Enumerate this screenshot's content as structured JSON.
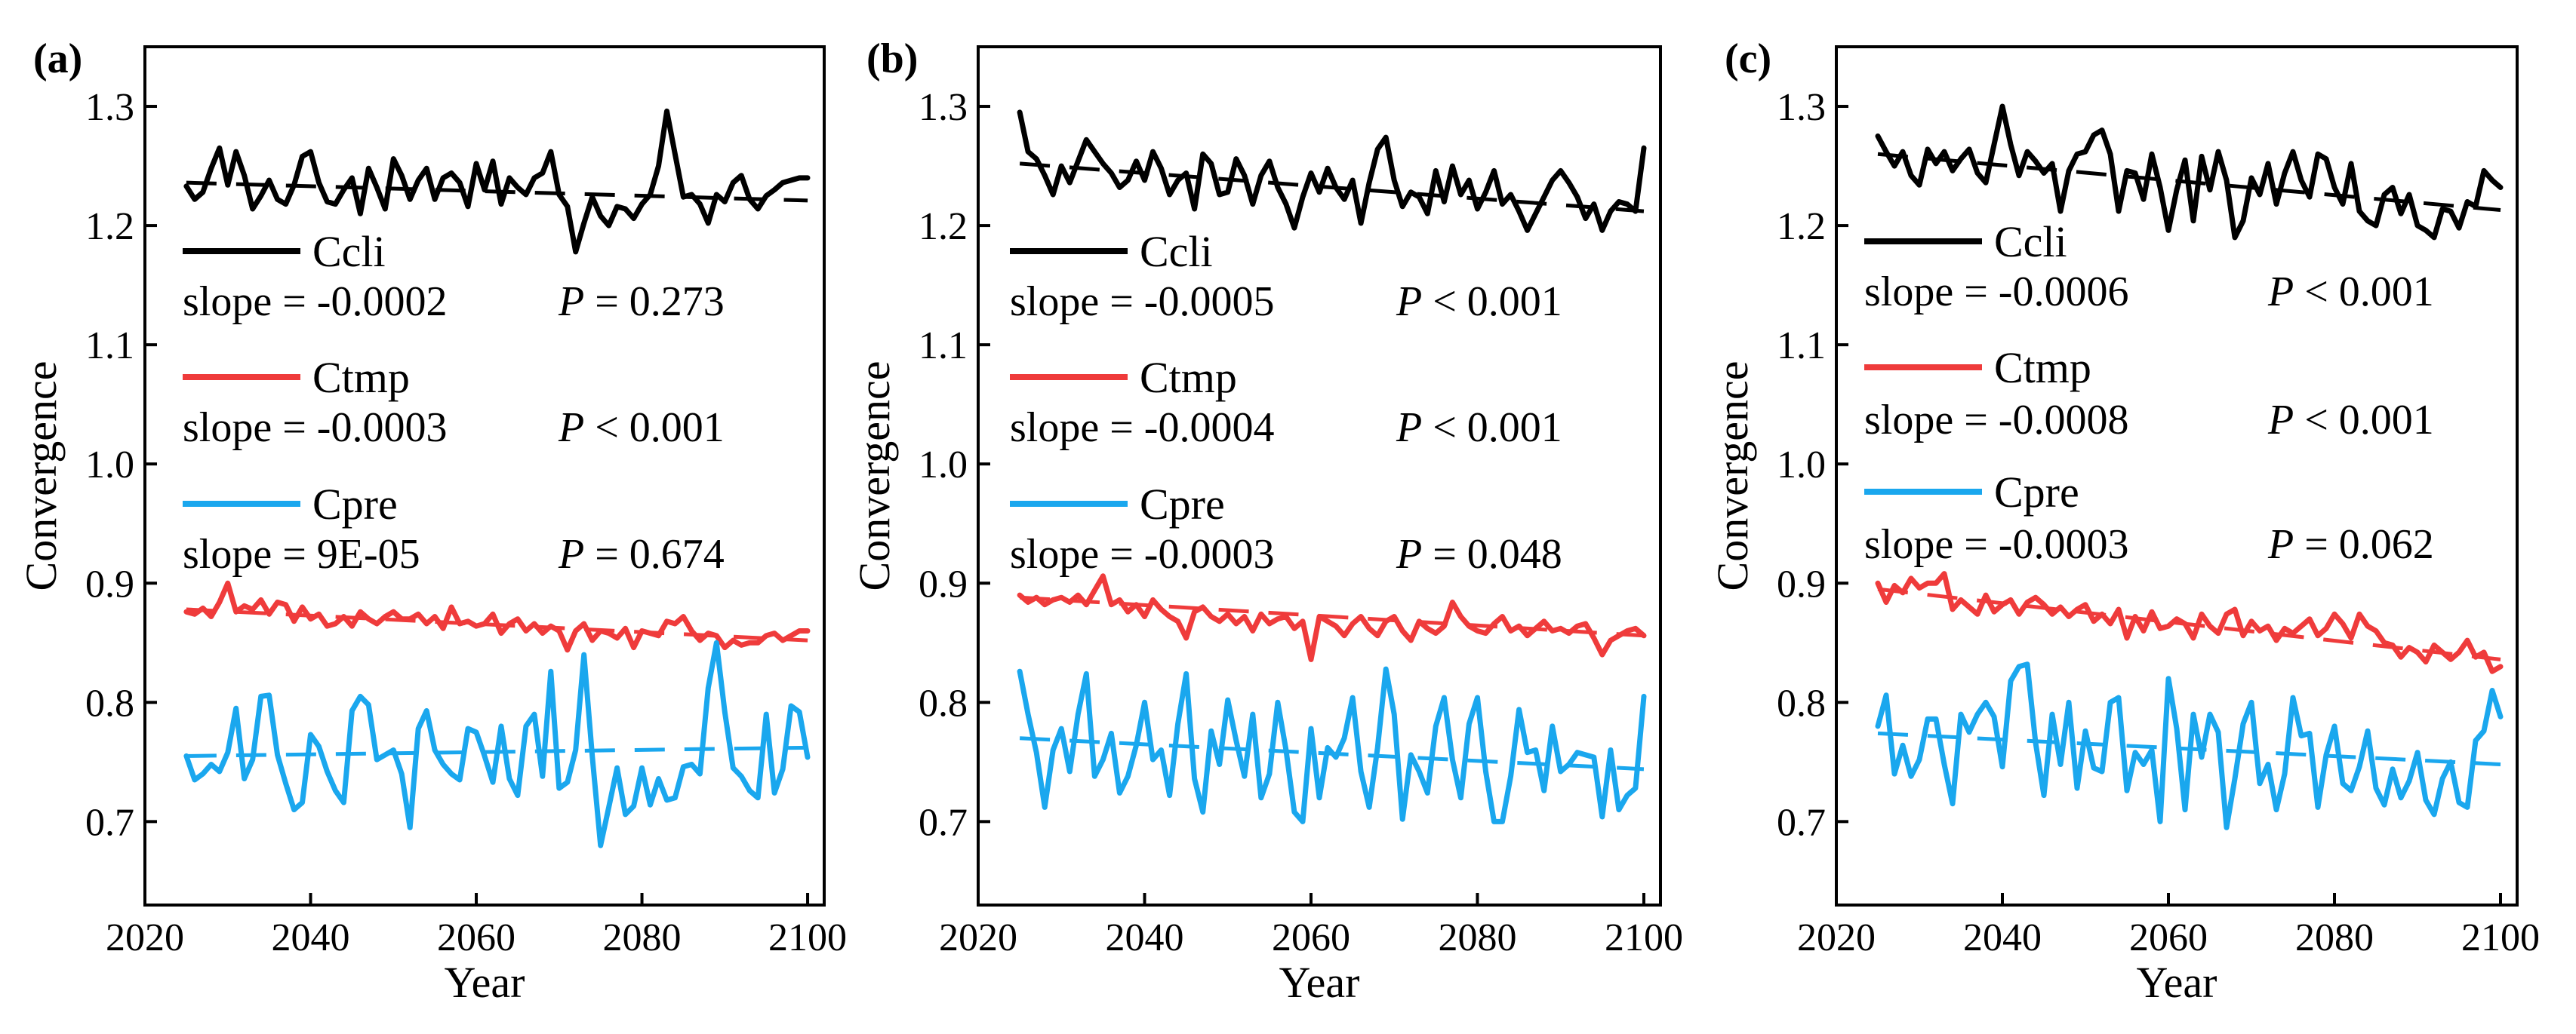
{
  "colors": {
    "Ccli": "#000000",
    "Ctmp": "#ef3b3b",
    "Cpre": "#1aa7ee",
    "axis": "#000000",
    "background": "#ffffff"
  },
  "chart_data": [
    {
      "type": "line",
      "panel_label": "(a)",
      "xlabel": "Year",
      "ylabel": "Convergence",
      "xlim": [
        2020,
        2102
      ],
      "ylim": [
        0.63,
        1.35
      ],
      "xticks": [
        2020,
        2040,
        2060,
        2080,
        2100
      ],
      "yticks": [
        0.7,
        0.8,
        0.9,
        1.0,
        1.1,
        1.2,
        1.3
      ],
      "x_start": 2025,
      "series": [
        {
          "name": "Ccli",
          "legend_label": "Ccli",
          "slope_text": "slope = -0.0002",
          "p_text": "P = 0.273",
          "trend": [
            1.236,
            1.221
          ],
          "values": [
            1.233,
            1.222,
            1.228,
            1.248,
            1.265,
            1.234,
            1.262,
            1.242,
            1.214,
            1.225,
            1.238,
            1.222,
            1.218,
            1.234,
            1.258,
            1.262,
            1.236,
            1.22,
            1.218,
            1.23,
            1.24,
            1.21,
            1.248,
            1.232,
            1.214,
            1.256,
            1.242,
            1.222,
            1.238,
            1.248,
            1.222,
            1.24,
            1.244,
            1.236,
            1.216,
            1.252,
            1.23,
            1.254,
            1.218,
            1.24,
            1.232,
            1.226,
            1.24,
            1.244,
            1.262,
            1.226,
            1.216,
            1.178,
            1.202,
            1.224,
            1.208,
            1.2,
            1.216,
            1.214,
            1.206,
            1.218,
            1.226,
            1.25,
            1.296,
            1.26,
            1.224,
            1.226,
            1.218,
            1.202,
            1.226,
            1.22,
            1.236,
            1.242,
            1.222,
            1.214,
            1.225,
            1.23,
            1.236,
            1.238,
            1.24,
            1.24
          ]
        },
        {
          "name": "Ctmp",
          "legend_label": "Ctmp",
          "slope_text": "slope = -0.0003",
          "p_text": "P < 0.001",
          "trend": [
            0.878,
            0.852
          ],
          "values": [
            0.876,
            0.874,
            0.879,
            0.872,
            0.884,
            0.9,
            0.876,
            0.881,
            0.878,
            0.886,
            0.874,
            0.884,
            0.882,
            0.868,
            0.88,
            0.87,
            0.874,
            0.864,
            0.866,
            0.872,
            0.864,
            0.876,
            0.87,
            0.866,
            0.872,
            0.876,
            0.87,
            0.87,
            0.874,
            0.866,
            0.872,
            0.862,
            0.88,
            0.866,
            0.868,
            0.864,
            0.866,
            0.874,
            0.858,
            0.866,
            0.87,
            0.86,
            0.866,
            0.858,
            0.864,
            0.86,
            0.844,
            0.86,
            0.866,
            0.852,
            0.86,
            0.858,
            0.854,
            0.862,
            0.846,
            0.86,
            0.858,
            0.856,
            0.868,
            0.866,
            0.872,
            0.86,
            0.852,
            0.858,
            0.856,
            0.846,
            0.852,
            0.848,
            0.85,
            0.85,
            0.856,
            0.858,
            0.852,
            0.856,
            0.86,
            0.86
          ]
        },
        {
          "name": "Cpre",
          "legend_label": "Cpre",
          "slope_text": "slope = 9E-05",
          "p_text": "P = 0.674",
          "trend": [
            0.755,
            0.762
          ],
          "values": [
            0.755,
            0.735,
            0.74,
            0.748,
            0.742,
            0.758,
            0.795,
            0.736,
            0.752,
            0.805,
            0.806,
            0.756,
            0.732,
            0.71,
            0.716,
            0.773,
            0.763,
            0.742,
            0.726,
            0.716,
            0.793,
            0.805,
            0.798,
            0.752,
            0.756,
            0.76,
            0.74,
            0.695,
            0.778,
            0.793,
            0.76,
            0.748,
            0.74,
            0.735,
            0.778,
            0.775,
            0.755,
            0.733,
            0.78,
            0.736,
            0.722,
            0.78,
            0.79,
            0.738,
            0.826,
            0.728,
            0.733,
            0.76,
            0.84,
            0.755,
            0.68,
            0.712,
            0.745,
            0.706,
            0.713,
            0.745,
            0.714,
            0.736,
            0.718,
            0.72,
            0.746,
            0.748,
            0.74,
            0.812,
            0.85,
            0.792,
            0.745,
            0.738,
            0.726,
            0.72,
            0.79,
            0.724,
            0.744,
            0.797,
            0.792,
            0.754
          ]
        }
      ]
    },
    {
      "type": "line",
      "panel_label": "(b)",
      "xlabel": "Year",
      "ylabel": "Convergence",
      "xlim": [
        2020,
        2102
      ],
      "ylim": [
        0.63,
        1.35
      ],
      "xticks": [
        2020,
        2040,
        2060,
        2080,
        2100
      ],
      "yticks": [
        0.7,
        0.8,
        0.9,
        1.0,
        1.1,
        1.2,
        1.3
      ],
      "x_start": 2025,
      "series": [
        {
          "name": "Ccli",
          "legend_label": "Ccli",
          "slope_text": "slope = -0.0005",
          "p_text": "P < 0.001",
          "trend": [
            1.252,
            1.212
          ],
          "values": [
            1.295,
            1.262,
            1.256,
            1.242,
            1.226,
            1.25,
            1.236,
            1.254,
            1.272,
            1.262,
            1.252,
            1.244,
            1.232,
            1.238,
            1.254,
            1.238,
            1.262,
            1.248,
            1.226,
            1.238,
            1.244,
            1.214,
            1.26,
            1.252,
            1.226,
            1.228,
            1.256,
            1.242,
            1.218,
            1.242,
            1.254,
            1.232,
            1.218,
            1.198,
            1.224,
            1.244,
            1.228,
            1.248,
            1.232,
            1.222,
            1.238,
            1.202,
            1.236,
            1.264,
            1.274,
            1.238,
            1.216,
            1.228,
            1.224,
            1.21,
            1.246,
            1.22,
            1.25,
            1.226,
            1.238,
            1.214,
            1.228,
            1.246,
            1.218,
            1.226,
            1.212,
            1.196,
            1.21,
            1.224,
            1.238,
            1.246,
            1.236,
            1.224,
            1.206,
            1.218,
            1.196,
            1.212,
            1.22,
            1.218,
            1.212,
            1.265
          ]
        },
        {
          "name": "Ctmp",
          "legend_label": "Ctmp",
          "slope_text": "slope = -0.0004",
          "p_text": "P < 0.001",
          "trend": [
            0.888,
            0.856
          ],
          "values": [
            0.89,
            0.884,
            0.888,
            0.882,
            0.886,
            0.888,
            0.884,
            0.89,
            0.882,
            0.894,
            0.906,
            0.882,
            0.886,
            0.876,
            0.882,
            0.872,
            0.886,
            0.878,
            0.872,
            0.868,
            0.854,
            0.876,
            0.88,
            0.872,
            0.868,
            0.874,
            0.866,
            0.872,
            0.86,
            0.874,
            0.866,
            0.87,
            0.872,
            0.862,
            0.868,
            0.836,
            0.872,
            0.868,
            0.864,
            0.856,
            0.866,
            0.872,
            0.862,
            0.856,
            0.868,
            0.872,
            0.86,
            0.852,
            0.868,
            0.862,
            0.858,
            0.864,
            0.884,
            0.872,
            0.864,
            0.86,
            0.858,
            0.866,
            0.872,
            0.86,
            0.864,
            0.856,
            0.862,
            0.868,
            0.86,
            0.862,
            0.858,
            0.864,
            0.866,
            0.854,
            0.84,
            0.852,
            0.856,
            0.86,
            0.862,
            0.856
          ]
        },
        {
          "name": "Cpre",
          "legend_label": "Cpre",
          "slope_text": "slope = -0.0003",
          "p_text": "P = 0.048",
          "trend": [
            0.77,
            0.744
          ],
          "values": [
            0.826,
            0.79,
            0.758,
            0.712,
            0.76,
            0.778,
            0.742,
            0.79,
            0.824,
            0.738,
            0.752,
            0.774,
            0.724,
            0.738,
            0.764,
            0.8,
            0.752,
            0.76,
            0.722,
            0.782,
            0.824,
            0.736,
            0.708,
            0.776,
            0.748,
            0.802,
            0.768,
            0.738,
            0.79,
            0.72,
            0.74,
            0.8,
            0.76,
            0.708,
            0.7,
            0.778,
            0.72,
            0.762,
            0.754,
            0.77,
            0.804,
            0.742,
            0.712,
            0.762,
            0.828,
            0.79,
            0.702,
            0.756,
            0.742,
            0.724,
            0.78,
            0.804,
            0.752,
            0.72,
            0.782,
            0.804,
            0.742,
            0.7,
            0.7,
            0.738,
            0.794,
            0.758,
            0.76,
            0.726,
            0.78,
            0.742,
            0.748,
            0.758,
            0.756,
            0.754,
            0.704,
            0.76,
            0.71,
            0.722,
            0.728,
            0.805
          ]
        }
      ]
    },
    {
      "type": "line",
      "panel_label": "(c)",
      "xlabel": "Year",
      "ylabel": "Convergence",
      "xlim": [
        2020,
        2102
      ],
      "ylim": [
        0.63,
        1.35
      ],
      "xticks": [
        2020,
        2040,
        2060,
        2080,
        2100
      ],
      "yticks": [
        0.7,
        0.8,
        0.9,
        1.0,
        1.1,
        1.2,
        1.3
      ],
      "x_start": 2025,
      "series": [
        {
          "name": "Ccli",
          "legend_label": "Ccli",
          "slope_text": "slope = -0.0006",
          "p_text": "P < 0.001",
          "trend": [
            1.26,
            1.213
          ],
          "values": [
            1.275,
            1.262,
            1.25,
            1.262,
            1.242,
            1.234,
            1.264,
            1.252,
            1.262,
            1.246,
            1.256,
            1.264,
            1.244,
            1.236,
            1.268,
            1.3,
            1.268,
            1.242,
            1.262,
            1.254,
            1.244,
            1.252,
            1.212,
            1.246,
            1.26,
            1.262,
            1.276,
            1.28,
            1.26,
            1.212,
            1.246,
            1.244,
            1.222,
            1.26,
            1.232,
            1.196,
            1.23,
            1.255,
            1.204,
            1.258,
            1.23,
            1.262,
            1.238,
            1.19,
            1.204,
            1.24,
            1.226,
            1.252,
            1.218,
            1.244,
            1.262,
            1.238,
            1.224,
            1.26,
            1.256,
            1.232,
            1.218,
            1.252,
            1.212,
            1.204,
            1.2,
            1.226,
            1.232,
            1.21,
            1.226,
            1.2,
            1.196,
            1.19,
            1.214,
            1.212,
            1.198,
            1.22,
            1.216,
            1.246,
            1.238,
            1.232
          ]
        },
        {
          "name": "Ctmp",
          "legend_label": "Ctmp",
          "slope_text": "slope = -0.0008",
          "p_text": "P < 0.001",
          "trend": [
            0.895,
            0.836
          ],
          "values": [
            0.9,
            0.884,
            0.898,
            0.892,
            0.904,
            0.896,
            0.9,
            0.9,
            0.908,
            0.878,
            0.886,
            0.88,
            0.874,
            0.89,
            0.876,
            0.882,
            0.886,
            0.874,
            0.884,
            0.888,
            0.882,
            0.874,
            0.88,
            0.872,
            0.878,
            0.882,
            0.868,
            0.874,
            0.866,
            0.878,
            0.854,
            0.872,
            0.86,
            0.876,
            0.862,
            0.864,
            0.87,
            0.866,
            0.854,
            0.874,
            0.864,
            0.858,
            0.874,
            0.878,
            0.856,
            0.868,
            0.86,
            0.864,
            0.852,
            0.862,
            0.858,
            0.864,
            0.87,
            0.856,
            0.862,
            0.874,
            0.866,
            0.854,
            0.874,
            0.864,
            0.86,
            0.85,
            0.848,
            0.838,
            0.846,
            0.842,
            0.834,
            0.848,
            0.842,
            0.836,
            0.842,
            0.852,
            0.838,
            0.842,
            0.826,
            0.83
          ]
        },
        {
          "name": "Cpre",
          "legend_label": "Cpre",
          "slope_text": "slope = -0.0003",
          "p_text": "P = 0.062",
          "trend": [
            0.774,
            0.748
          ],
          "values": [
            0.78,
            0.806,
            0.74,
            0.764,
            0.738,
            0.752,
            0.786,
            0.786,
            0.748,
            0.715,
            0.79,
            0.775,
            0.79,
            0.8,
            0.788,
            0.746,
            0.818,
            0.83,
            0.832,
            0.766,
            0.722,
            0.79,
            0.748,
            0.8,
            0.728,
            0.776,
            0.745,
            0.742,
            0.8,
            0.804,
            0.726,
            0.758,
            0.748,
            0.76,
            0.7,
            0.82,
            0.778,
            0.71,
            0.79,
            0.754,
            0.79,
            0.775,
            0.695,
            0.736,
            0.782,
            0.8,
            0.732,
            0.748,
            0.71,
            0.74,
            0.804,
            0.772,
            0.774,
            0.712,
            0.756,
            0.78,
            0.732,
            0.726,
            0.746,
            0.776,
            0.728,
            0.714,
            0.744,
            0.72,
            0.734,
            0.758,
            0.718,
            0.706,
            0.736,
            0.75,
            0.716,
            0.712,
            0.768,
            0.776,
            0.81,
            0.788
          ]
        }
      ]
    }
  ]
}
